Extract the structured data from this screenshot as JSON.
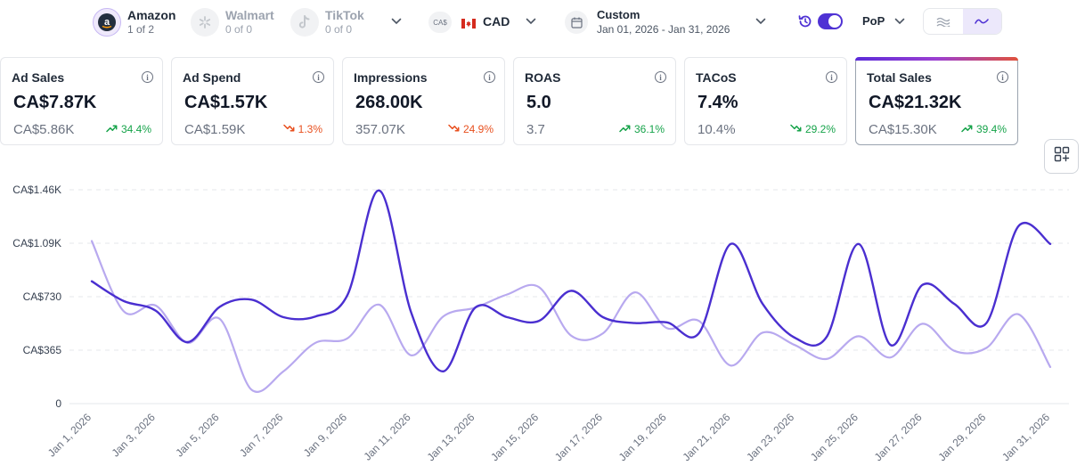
{
  "stores": [
    {
      "name": "Amazon",
      "sub": "1 of 2",
      "icon": "amazon-logo-icon",
      "active": true
    },
    {
      "name": "Walmart",
      "sub": "0 of 0",
      "icon": "walmart-logo-icon",
      "active": false
    },
    {
      "name": "TikTok",
      "sub": "0 of 0",
      "icon": "tiktok-logo-icon",
      "active": false
    }
  ],
  "currency": {
    "badge": "CA$",
    "label": "CAD",
    "flag": "canada-flag-icon"
  },
  "date": {
    "title": "Custom",
    "range": "Jan 01, 2026 - Jan 31, 2026"
  },
  "comparison": {
    "label": "PoP",
    "toggle_on": true
  },
  "view_options": [
    "smooth-area-icon",
    "line-icon"
  ],
  "colors": {
    "accent": "#4f32d4",
    "current_series": "#4a2fd0",
    "previous_series": "#b8a9ef",
    "up": "#16a34a",
    "down": "#e8501f"
  },
  "cards": [
    {
      "title": "Ad Sales",
      "value": "CA$7.87K",
      "prev": "CA$5.86K",
      "change": "34.4%",
      "trend": "up",
      "selected": false
    },
    {
      "title": "Ad Spend",
      "value": "CA$1.57K",
      "prev": "CA$1.59K",
      "change": "1.3%",
      "trend": "down",
      "selected": false
    },
    {
      "title": "Impressions",
      "value": "268.00K",
      "prev": "357.07K",
      "change": "24.9%",
      "trend": "down",
      "selected": false
    },
    {
      "title": "ROAS",
      "value": "5.0",
      "prev": "3.7",
      "change": "36.1%",
      "trend": "up",
      "selected": false
    },
    {
      "title": "TACoS",
      "value": "7.4%",
      "prev": "10.4%",
      "change": "29.2%",
      "trend": "down-good",
      "selected": false
    },
    {
      "title": "Total Sales",
      "value": "CA$21.32K",
      "prev": "CA$15.30K",
      "change": "39.4%",
      "trend": "up",
      "selected": true
    }
  ],
  "chart_data": {
    "type": "line",
    "x": [
      "Jan 1, 2026",
      "Jan 2, 2026",
      "Jan 3, 2026",
      "Jan 4, 2026",
      "Jan 5, 2026",
      "Jan 6, 2026",
      "Jan 7, 2026",
      "Jan 8, 2026",
      "Jan 9, 2026",
      "Jan 10, 2026",
      "Jan 11, 2026",
      "Jan 12, 2026",
      "Jan 13, 2026",
      "Jan 14, 2026",
      "Jan 15, 2026",
      "Jan 16, 2026",
      "Jan 17, 2026",
      "Jan 18, 2026",
      "Jan 19, 2026",
      "Jan 20, 2026",
      "Jan 21, 2026",
      "Jan 22, 2026",
      "Jan 23, 2026",
      "Jan 24, 2026",
      "Jan 25, 2026",
      "Jan 26, 2026",
      "Jan 27, 2026",
      "Jan 28, 2026",
      "Jan 29, 2026",
      "Jan 30, 2026",
      "Jan 31, 2026"
    ],
    "tick_labels": [
      "Jan 1, 2026",
      "Jan 3, 2026",
      "Jan 5, 2026",
      "Jan 7, 2026",
      "Jan 9, 2026",
      "Jan 11, 2026",
      "Jan 13, 2026",
      "Jan 15, 2026",
      "Jan 17, 2026",
      "Jan 19, 2026",
      "Jan 21, 2026",
      "Jan 23, 2026",
      "Jan 25, 2026",
      "Jan 27, 2026",
      "Jan 29, 2026",
      "Jan 31, 2026"
    ],
    "y_ticks": [
      {
        "value": 0,
        "label": "0"
      },
      {
        "value": 365,
        "label": "CA$365"
      },
      {
        "value": 730,
        "label": "CA$730"
      },
      {
        "value": 1095,
        "label": "CA$1.09K"
      },
      {
        "value": 1460,
        "label": "CA$1.46K"
      }
    ],
    "ylim": [
      0,
      1460
    ],
    "grid": true,
    "series": [
      {
        "role": "current",
        "values": [
          835,
          700,
          635,
          420,
          660,
          710,
          590,
          595,
          740,
          1455,
          620,
          220,
          655,
          590,
          565,
          770,
          590,
          550,
          555,
          480,
          1090,
          680,
          450,
          455,
          1090,
          400,
          810,
          680,
          550,
          1210,
          1090
        ]
      },
      {
        "role": "previous",
        "values": [
          1110,
          630,
          670,
          415,
          580,
          95,
          220,
          415,
          445,
          675,
          330,
          595,
          655,
          745,
          795,
          465,
          480,
          760,
          515,
          565,
          260,
          485,
          400,
          305,
          460,
          315,
          545,
          360,
          380,
          610,
          250
        ]
      }
    ]
  }
}
